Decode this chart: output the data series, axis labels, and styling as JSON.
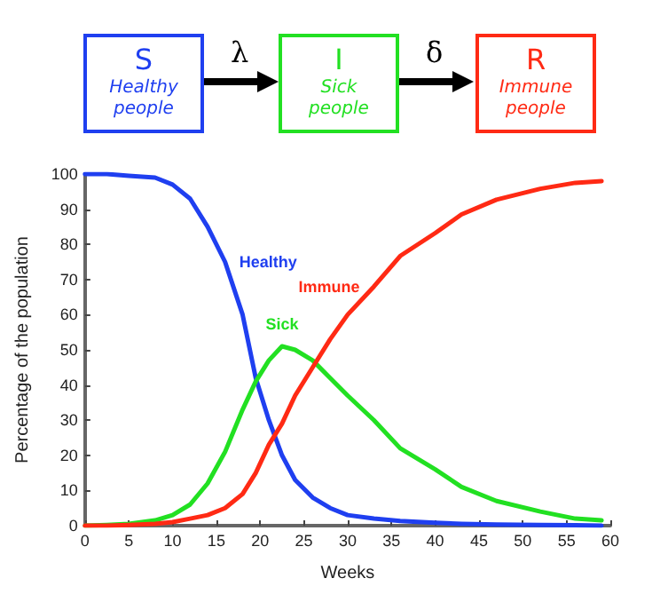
{
  "chart_data": {
    "type": "line",
    "xlabel": "Weeks",
    "ylabel": "Percentage of the population",
    "annotations": [
      "S",
      "Healthy people",
      "λ",
      "I",
      "Sick people",
      "δ",
      "R",
      "Immune people"
    ],
    "x": [
      0,
      2.5,
      5,
      8,
      10,
      12,
      14,
      16,
      18,
      19.5,
      21,
      22.5,
      24,
      26,
      28,
      30,
      33,
      36,
      40,
      43,
      47,
      52,
      56,
      59
    ],
    "series": [
      {
        "name": "Healthy",
        "color": "#1f3ff0",
        "values": [
          100,
          100,
          99.5,
          99,
          97,
          93,
          85,
          75,
          60,
          42,
          30,
          20,
          13,
          8,
          5,
          3,
          2,
          1.3,
          0.8,
          0.5,
          0.3,
          0.2,
          0.1,
          0
        ]
      },
      {
        "name": "Sick",
        "color": "#22e022",
        "values": [
          0,
          0.2,
          0.5,
          1.5,
          3,
          6,
          12,
          21,
          33,
          41,
          47,
          51,
          50,
          47,
          42,
          37,
          30,
          22,
          16,
          11,
          7,
          4,
          2,
          1.5
        ]
      },
      {
        "name": "Immune",
        "color": "#ff2a14",
        "values": [
          0,
          0,
          0.2,
          0.5,
          1,
          2,
          3,
          5,
          9,
          15,
          23,
          29,
          37,
          45,
          53,
          60,
          68,
          76.7,
          83.2,
          88.5,
          92.7,
          95.8,
          97.5,
          98
        ]
      }
    ],
    "xlim": [
      0,
      60
    ],
    "xticks": [
      0,
      5,
      10,
      15,
      20,
      25,
      30,
      35,
      40,
      45,
      50,
      55,
      60
    ],
    "ylim": [
      0,
      100
    ],
    "yticks": [
      0,
      10,
      20,
      30,
      40,
      50,
      60,
      70,
      80,
      90,
      100
    ],
    "grid": false,
    "legend": false,
    "marker": "none",
    "line_style": "solid"
  }
}
